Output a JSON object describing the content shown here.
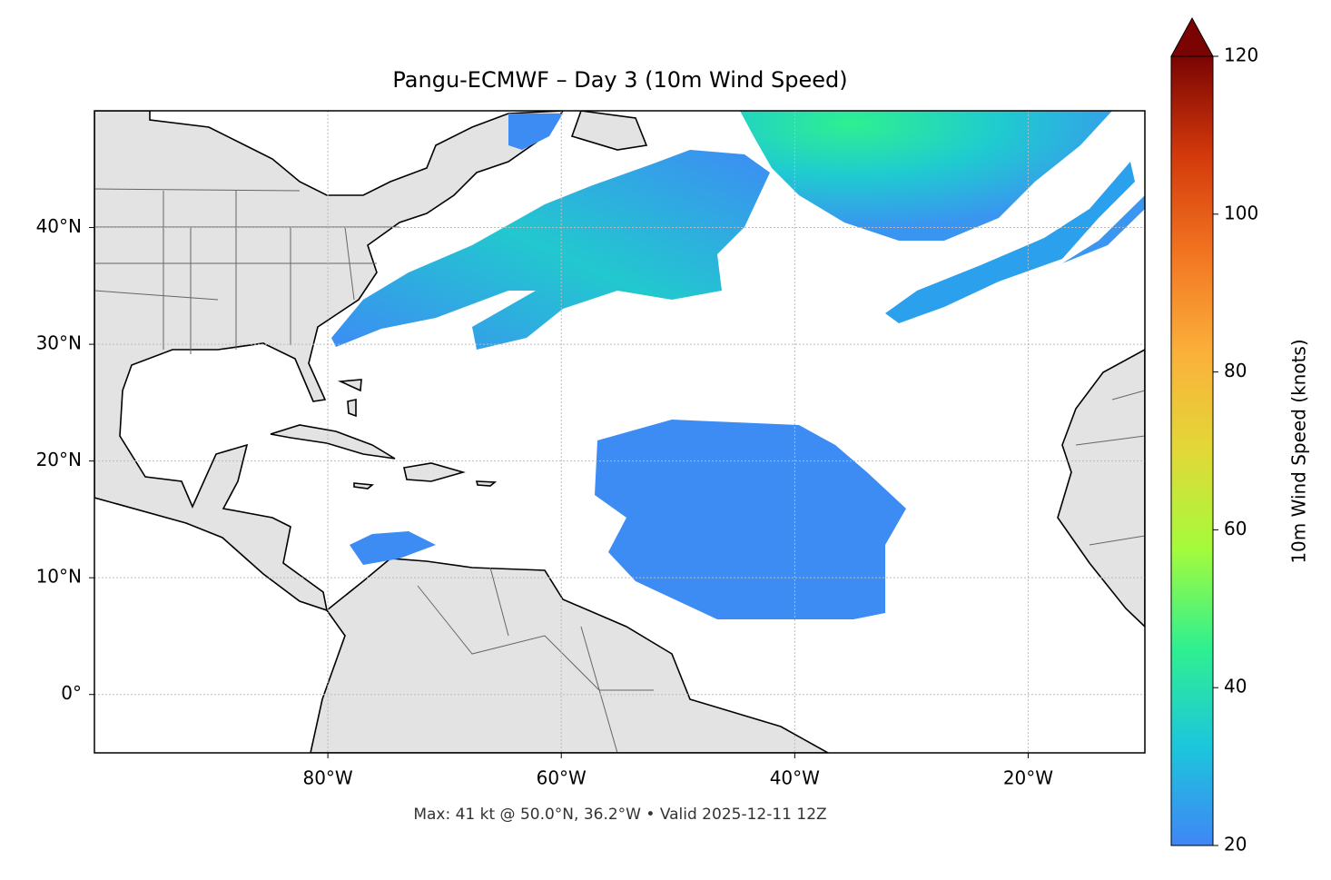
{
  "chart_data": {
    "type": "map",
    "title": "Pangu-ECMWF – Day 3 (10m Wind Speed)",
    "footnote": "Max: 41 kt @ 50.0°N, 36.2°W • Valid 2025-12-11 12Z",
    "xlim": [
      -100,
      -10
    ],
    "ylim": [
      -5,
      50
    ],
    "xticks": [
      {
        "value": -80,
        "label": "80°W"
      },
      {
        "value": -60,
        "label": "60°W"
      },
      {
        "value": -40,
        "label": "40°W"
      },
      {
        "value": -20,
        "label": "20°W"
      }
    ],
    "yticks": [
      {
        "value": 0,
        "label": "0°"
      },
      {
        "value": 10,
        "label": "10°N"
      },
      {
        "value": 20,
        "label": "20°N"
      },
      {
        "value": 30,
        "label": "30°N"
      },
      {
        "value": 40,
        "label": "40°N"
      }
    ],
    "grid": true,
    "colorbar": {
      "label": "10m Wind Speed (knots)",
      "lim": [
        20,
        120
      ],
      "ticks": [
        20,
        40,
        60,
        80,
        100,
        120
      ],
      "colors": [
        "#3f86f6",
        "#1cc6dc",
        "#2ff090",
        "#a4fb3c",
        "#e2d838",
        "#fbb03a",
        "#f27522",
        "#d3390b",
        "#7a0403"
      ]
    }
  }
}
